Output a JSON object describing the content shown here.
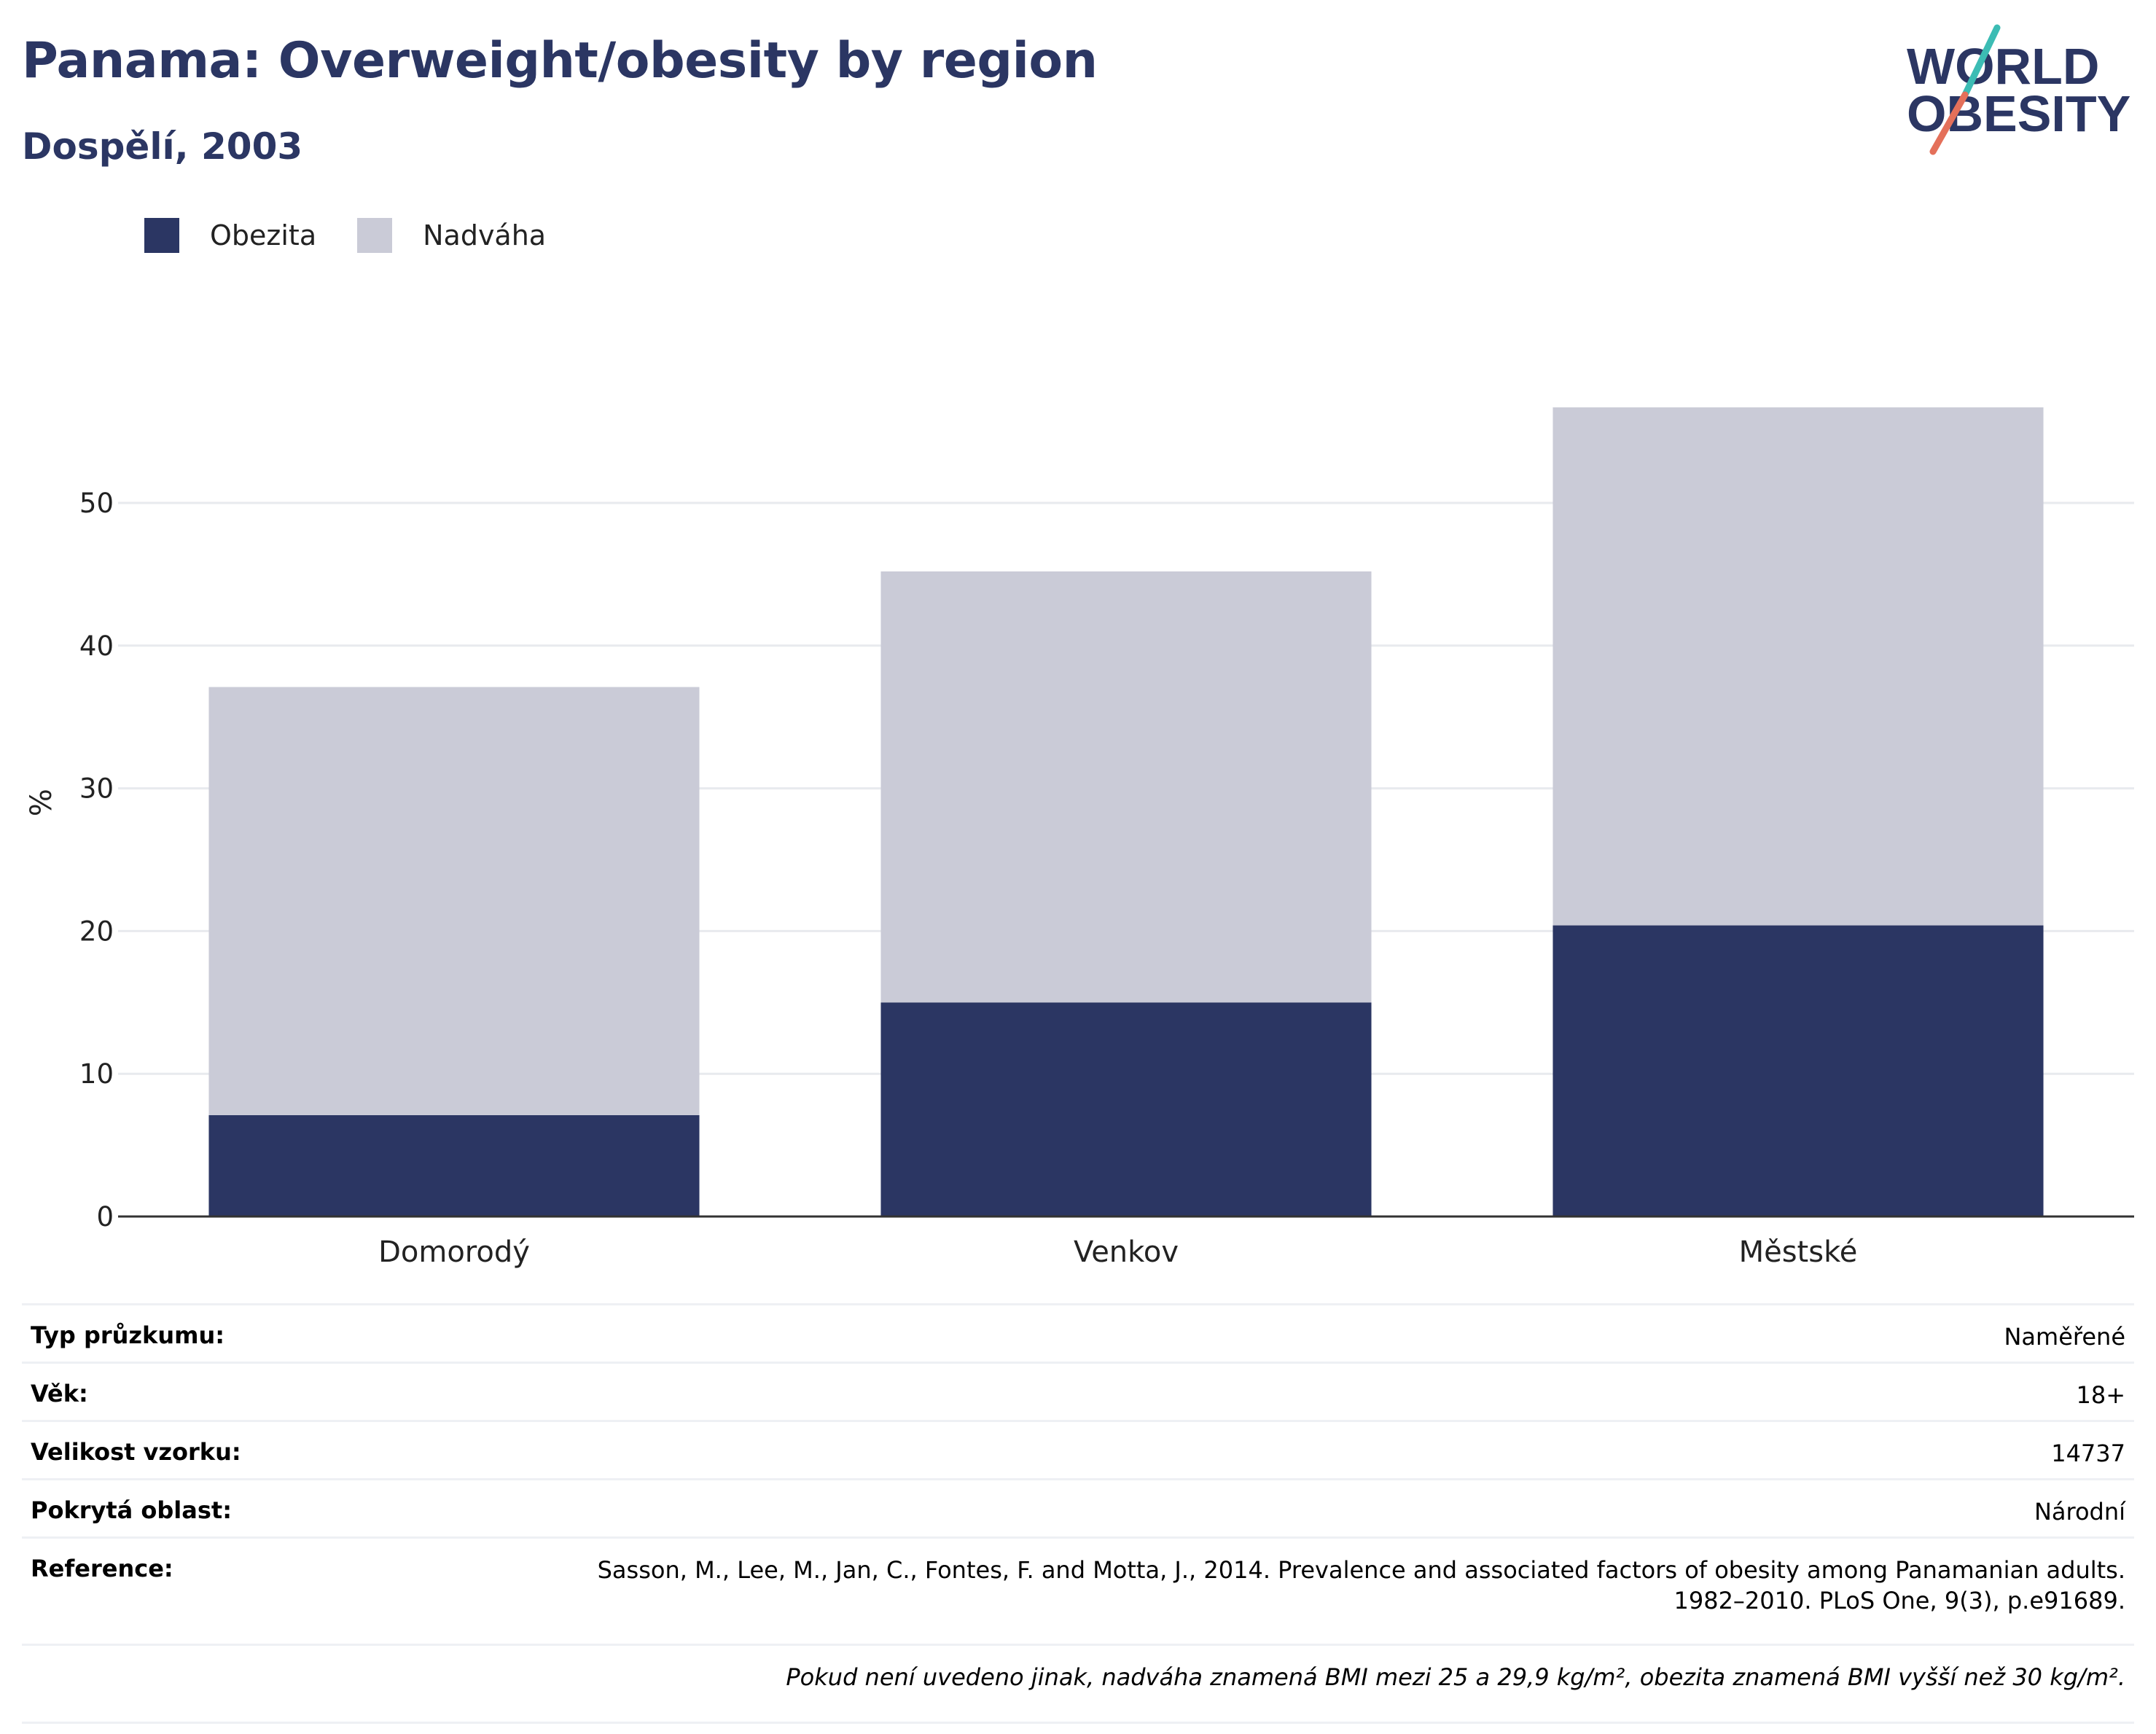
{
  "header": {
    "title": "Panama: Overweight/obesity by region",
    "subtitle": "Dospělí, 2003"
  },
  "logo": {
    "line1": "WORLD",
    "line2": "OBESITY",
    "text_color": "#2b3663",
    "slash_colors": [
      "#3cbcb4",
      "#e4705a"
    ]
  },
  "legend": [
    {
      "label": "Obezita",
      "color": "#2b3663"
    },
    {
      "label": "Nadváha",
      "color": "#cacbd7"
    }
  ],
  "chart_data": {
    "type": "bar",
    "stacked": true,
    "categories": [
      "Domorodý",
      "Venkov",
      "Městské"
    ],
    "series": [
      {
        "name": "Obezita",
        "values": [
          7.1,
          15.0,
          20.4
        ],
        "color": "#2b3663"
      },
      {
        "name": "Nadváha",
        "values": [
          30.0,
          30.2,
          36.3
        ],
        "color": "#cacbd7"
      }
    ],
    "title": "Panama: Overweight/obesity by region",
    "subtitle": "Dospělí, 2003",
    "xlabel": "",
    "ylabel": "%",
    "yticks": [
      0,
      10,
      20,
      30,
      40,
      50
    ],
    "ylim": [
      0,
      60
    ],
    "grid": true,
    "legend_position": "top-left"
  },
  "meta": [
    {
      "key": "Typ průzkumu:",
      "value": "Naměřené"
    },
    {
      "key": "Věk:",
      "value": "18+"
    },
    {
      "key": "Velikost vzorku:",
      "value": "14737"
    },
    {
      "key": "Pokrytá oblast:",
      "value": "Národní"
    }
  ],
  "reference": {
    "key": "Reference:",
    "line1": "Sasson, M., Lee, M., Jan, C., Fontes, F. and Motta, J., 2014. Prevalence and associated factors of obesity among Panamanian adults.",
    "line2": "1982–2010. PLoS One, 9(3), p.e91689."
  },
  "note": "Pokud není uvedeno jinak, nadváha znamená BMI mezi 25 a 29,9 kg/m², obezita znamená BMI vyšší než 30 kg/m²."
}
